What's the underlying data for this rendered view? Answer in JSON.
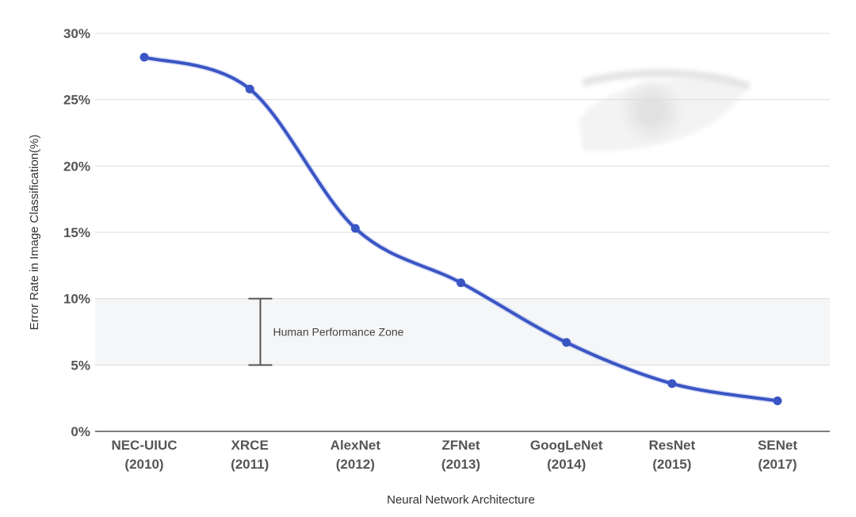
{
  "chart_data": {
    "type": "line",
    "title": "",
    "xlabel": "Neural Network Architecture",
    "ylabel": "Error Rate in Image Classification(%)",
    "categories": [
      {
        "name": "NEC-UIUC",
        "year": "(2010)"
      },
      {
        "name": "XRCE",
        "year": "(2011)"
      },
      {
        "name": "AlexNet",
        "year": "(2012)"
      },
      {
        "name": "ZFNet",
        "year": "(2013)"
      },
      {
        "name": "GoogLeNet",
        "year": "(2014)"
      },
      {
        "name": "ResNet",
        "year": "(2015)"
      },
      {
        "name": "SENet",
        "year": "(2017)"
      }
    ],
    "series": [
      {
        "values": [
          28.2,
          25.8,
          15.3,
          11.2,
          6.7,
          3.6,
          2.3
        ],
        "color": "#3a55c4"
      }
    ],
    "ylim": [
      0,
      30
    ],
    "yticks": [
      0,
      5,
      10,
      15,
      20,
      25,
      30
    ],
    "ytick_labels": [
      "0%",
      "5%",
      "10%",
      "15%",
      "20%",
      "25%",
      "30%"
    ],
    "grid": true,
    "legend": "none",
    "annotation": {
      "label": "Human Performance Zone",
      "range": [
        5,
        10
      ],
      "fill_color": "#f5f6f7",
      "marker_x_position": 1.1
    },
    "decoration": "eye-watermark-icon"
  }
}
